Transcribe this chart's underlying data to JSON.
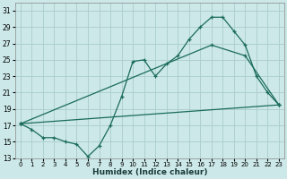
{
  "bg_color": "#cce8e8",
  "grid_color": "#aacccc",
  "line_color": "#1a6b5a",
  "xlabel": "Humidex (Indice chaleur)",
  "xlim": [
    -0.5,
    23.5
  ],
  "ylim": [
    13,
    32
  ],
  "yticks": [
    13,
    15,
    17,
    19,
    21,
    23,
    25,
    27,
    29,
    31
  ],
  "xticks": [
    0,
    1,
    2,
    3,
    4,
    5,
    6,
    7,
    8,
    9,
    10,
    11,
    12,
    13,
    14,
    15,
    16,
    17,
    18,
    19,
    20,
    21,
    22,
    23
  ],
  "series1_x": [
    0,
    1,
    2,
    3,
    4,
    5,
    6,
    7,
    8,
    9,
    10,
    11,
    12,
    13,
    14,
    15,
    16,
    17,
    18,
    19,
    20,
    21,
    22,
    23
  ],
  "series1_y": [
    17.2,
    16.5,
    15.5,
    15.5,
    15.0,
    14.7,
    13.2,
    14.5,
    17.0,
    20.5,
    24.8,
    25.0,
    23.0,
    24.5,
    25.5,
    27.5,
    29.0,
    30.2,
    30.2,
    28.5,
    26.8,
    23.0,
    21.0,
    19.5
  ],
  "series2_x": [
    0,
    23
  ],
  "series2_y": [
    17.2,
    19.5
  ],
  "series3_x": [
    0,
    17,
    20,
    23
  ],
  "series3_y": [
    17.2,
    26.8,
    25.5,
    19.5
  ]
}
